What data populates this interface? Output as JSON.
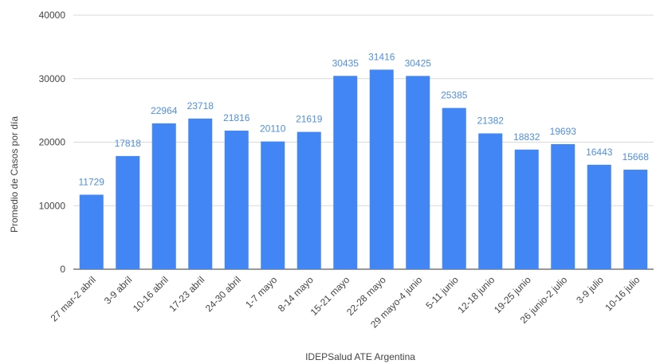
{
  "chart_data": {
    "type": "bar",
    "title": "",
    "xlabel": "IDEPSalud ATE Argentina",
    "ylabel": "Promedio de Casos por día",
    "ylim": [
      0,
      40000
    ],
    "yticks": [
      0,
      10000,
      20000,
      30000,
      40000
    ],
    "grid": true,
    "bar_color": "#4285f4",
    "label_color": "#4f8fde",
    "categories": [
      "27 mar-2 abril",
      "3-9 abril",
      "10-16 abril",
      "17-23 abril",
      "24-30 abril",
      "1-7 mayo",
      "8-14 mayo",
      "15-21 mayo",
      "22-28 mayo",
      "29 mayo-4 junio",
      "5-11 junio",
      "12-18 junio",
      "19-25 junio",
      "26 junio-2 julio",
      "3-9 julio",
      "10-16 julio"
    ],
    "values": [
      11729,
      17818,
      22964,
      23718,
      21816,
      20110,
      21619,
      30435,
      31416,
      30425,
      25385,
      21382,
      18832,
      19693,
      16443,
      15668
    ]
  }
}
